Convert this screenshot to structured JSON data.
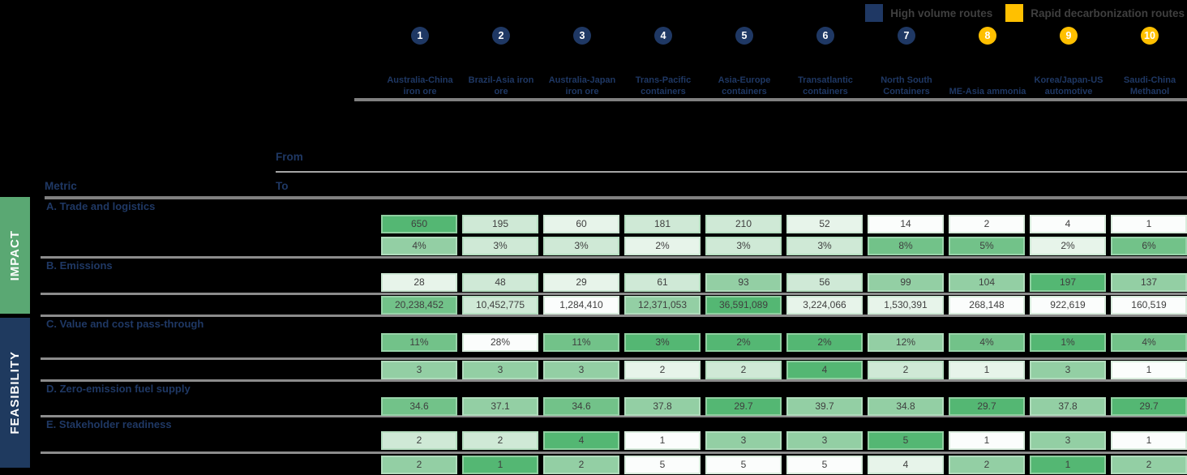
{
  "chart_data": {
    "type": "heatmap",
    "legend": [
      {
        "label": "High volume routes",
        "color": "#1f3864",
        "group": "high-volume"
      },
      {
        "label": "Rapid decarbonization routes",
        "color": "#ffc000",
        "group": "rapid-decarb"
      }
    ],
    "corner_labels": {
      "metric": "Metric",
      "from": "From",
      "to": "To"
    },
    "row_groups": [
      {
        "label": "IMPACT",
        "color": "#5aa873"
      },
      {
        "label": "FEASIBILITY",
        "color": "#1f3a5f"
      }
    ],
    "columns": [
      {
        "num": "1",
        "label": "Australia-China iron ore",
        "group": "high-volume"
      },
      {
        "num": "2",
        "label": "Brazil-Asia iron ore",
        "group": "high-volume"
      },
      {
        "num": "3",
        "label": "Australia-Japan iron ore",
        "group": "high-volume"
      },
      {
        "num": "4",
        "label": "Trans-Pacific containers",
        "group": "high-volume"
      },
      {
        "num": "5",
        "label": "Asia-Europe containers",
        "group": "high-volume"
      },
      {
        "num": "6",
        "label": "Transatlantic containers",
        "group": "high-volume"
      },
      {
        "num": "7",
        "label": "North South Containers",
        "group": "high-volume"
      },
      {
        "num": "8",
        "label": "ME-Asia ammonia",
        "group": "rapid-decarb"
      },
      {
        "num": "9",
        "label": "Korea/Japan-US automotive",
        "group": "rapid-decarb"
      },
      {
        "num": "10",
        "label": "Saudi-China Methanol",
        "group": "rapid-decarb"
      }
    ],
    "intensity_scale": "levels 0 (white) to 5 (dark green)",
    "sections": [
      {
        "title": "A. Trade and logistics",
        "rows": [
          {
            "values": [
              "650",
              "195",
              "60",
              "181",
              "210",
              "52",
              "14",
              "2",
              "4",
              "1"
            ],
            "levels": [
              5,
              2,
              1,
              2,
              2,
              1,
              0,
              0,
              0,
              0
            ]
          },
          {
            "values": [
              "4%",
              "3%",
              "3%",
              "2%",
              "3%",
              "3%",
              "8%",
              "5%",
              "2%",
              "6%"
            ],
            "levels": [
              3,
              2,
              2,
              1,
              2,
              2,
              4,
              4,
              1,
              4
            ]
          }
        ]
      },
      {
        "title": "B. Emissions",
        "rows": [
          {
            "values": [
              "28",
              "48",
              "29",
              "61",
              "93",
              "56",
              "99",
              "104",
              "197",
              "137"
            ],
            "levels": [
              1,
              2,
              1,
              2,
              3,
              2,
              3,
              3,
              5,
              3
            ]
          },
          {
            "values": [
              "20,238,452",
              "10,452,775",
              "1,284,410",
              "12,371,053",
              "36,591,089",
              "3,224,066",
              "1,530,391",
              "268,148",
              "922,619",
              "160,519"
            ],
            "levels": [
              4,
              2,
              0,
              3,
              5,
              1,
              1,
              0,
              0,
              0
            ]
          }
        ]
      },
      {
        "title": "C. Value and cost pass-through",
        "rows": [
          {
            "values": [
              "11%",
              "28%",
              "11%",
              "3%",
              "2%",
              "2%",
              "12%",
              "4%",
              "1%",
              "4%"
            ],
            "levels": [
              4,
              0,
              4,
              5,
              5,
              5,
              3,
              4,
              5,
              4
            ]
          },
          {
            "values": [
              "3",
              "3",
              "3",
              "2",
              "2",
              "4",
              "2",
              "1",
              "3",
              "1"
            ],
            "levels": [
              3,
              3,
              3,
              1,
              2,
              5,
              2,
              1,
              3,
              0
            ]
          }
        ]
      },
      {
        "title": "D. Zero-emission fuel supply",
        "rows": [
          {
            "values": [
              "34.6",
              "37.1",
              "34.6",
              "37.8",
              "29.7",
              "39.7",
              "34.8",
              "29.7",
              "37.8",
              "29.7"
            ],
            "levels": [
              4,
              3,
              4,
              3,
              5,
              3,
              3,
              5,
              3,
              5
            ]
          }
        ]
      },
      {
        "title": "E. Stakeholder readiness",
        "rows": [
          {
            "values": [
              "2",
              "2",
              "4",
              "1",
              "3",
              "3",
              "5",
              "1",
              "3",
              "1"
            ],
            "levels": [
              2,
              2,
              5,
              0,
              3,
              3,
              5,
              0,
              3,
              0
            ]
          },
          {
            "values": [
              "2",
              "1",
              "2",
              "5",
              "5",
              "5",
              "4",
              "2",
              "1",
              "2"
            ],
            "levels": [
              3,
              5,
              3,
              0,
              0,
              0,
              1,
              3,
              5,
              3
            ]
          }
        ]
      }
    ]
  }
}
